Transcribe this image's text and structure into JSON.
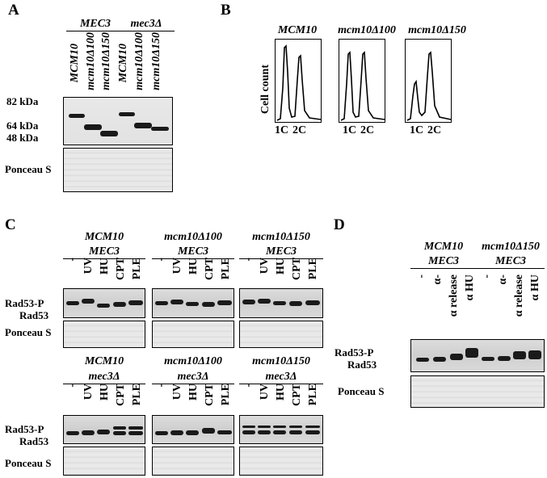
{
  "panels": {
    "A": {
      "label": "A",
      "groups": [
        "MEC3",
        "mec3Δ"
      ],
      "lanes": [
        "MCM10",
        "mcm10Δ100",
        "mcm10Δ150",
        "MCM10",
        "mcm10Δ100",
        "mcm10Δ150"
      ],
      "markers": [
        "82 kDa",
        "64 kDa",
        "48 kDa"
      ],
      "ponceau": "Ponceau S"
    },
    "B": {
      "label": "B",
      "titles": [
        "MCM10",
        "mcm10Δ100",
        "mcm10Δ150"
      ],
      "ylabel": "Cell count",
      "xticks": [
        "1C",
        "2C"
      ]
    },
    "C": {
      "label": "C",
      "top_genotypes": [
        {
          "line1": "MCM10",
          "line2": "MEC3"
        },
        {
          "line1": "mcm10Δ100",
          "line2": "MEC3"
        },
        {
          "line1": "mcm10Δ150",
          "line2": "MEC3"
        }
      ],
      "bottom_genotypes": [
        {
          "line1": "MCM10",
          "line2": "mec3Δ"
        },
        {
          "line1": "mcm10Δ100",
          "line2": "mec3Δ"
        },
        {
          "line1": "mcm10Δ150",
          "line2": "mec3Δ"
        }
      ],
      "lanes": [
        "-",
        "UV",
        "HU",
        "CPT",
        "PLE"
      ],
      "rad53p": "Rad53-P",
      "rad53": "Rad53",
      "ponceau": "Ponceau S"
    },
    "D": {
      "label": "D",
      "genotypes": [
        {
          "line1": "MCM10",
          "line2": "MEC3"
        },
        {
          "line1": "mcm10Δ150",
          "line2": "MEC3"
        }
      ],
      "lanes": [
        "-",
        "α-",
        "α release",
        "α HU"
      ],
      "rad53p": "Rad53-P",
      "rad53": "Rad53",
      "ponceau": "Ponceau S"
    }
  }
}
